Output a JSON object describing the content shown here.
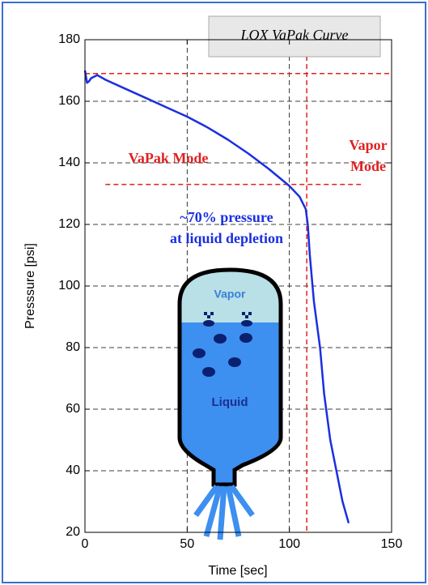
{
  "chart_data": {
    "type": "line",
    "title": "LOX VaPak Curve",
    "x_label": "Time [sec]",
    "y_label": "Presssure [psi]",
    "xlim": [
      0,
      150
    ],
    "xticks": [
      0,
      50,
      100,
      150
    ],
    "ylim": [
      20,
      180
    ],
    "yticks": [
      20,
      40,
      60,
      80,
      100,
      120,
      140,
      160,
      180
    ],
    "grid": true,
    "series": [
      {
        "name": "Pressure",
        "color": "#1a2fe0",
        "x": [
          0,
          1,
          2,
          3,
          6,
          10,
          20,
          30,
          40,
          50,
          60,
          70,
          80,
          90,
          100,
          105,
          108,
          109,
          110,
          112,
          115,
          117,
          120,
          123,
          126,
          129
        ],
        "values": [
          170,
          166,
          166.5,
          167.5,
          168.5,
          167,
          164,
          161,
          158,
          155,
          151.5,
          147.5,
          143,
          138,
          132.5,
          129,
          125,
          120,
          110,
          95,
          80,
          65,
          50,
          40,
          30,
          23
        ]
      }
    ],
    "reference_lines": {
      "color": "#e02020",
      "horizontal": [
        {
          "y": 169,
          "x_from": 0,
          "x_to": 150
        },
        {
          "y": 133,
          "x_from": 10,
          "x_to": 135
        }
      ],
      "vertical": [
        {
          "x": 108.5
        }
      ]
    },
    "annotations": {
      "vapak_mode": "VaPak Mode",
      "vapor_mode": [
        "Vapor",
        "Mode"
      ],
      "depletion": [
        "~70% pressure",
        "at liquid depletion"
      ]
    },
    "tank": {
      "vapor": "Vapor",
      "liquid": "Liquid"
    }
  }
}
